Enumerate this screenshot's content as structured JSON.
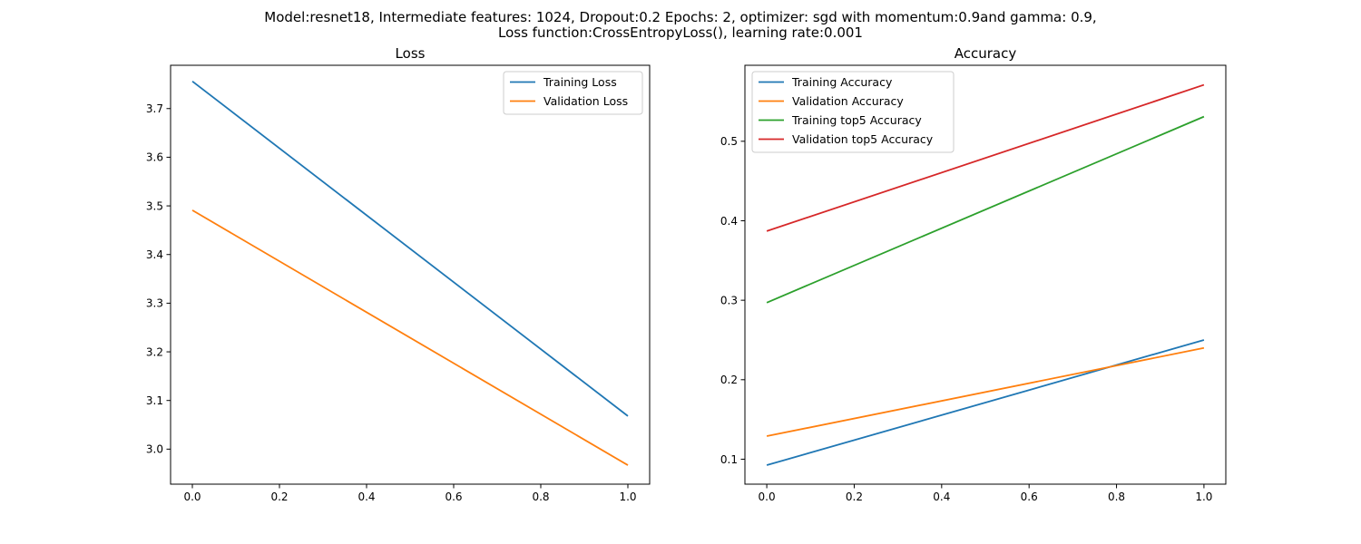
{
  "figure": {
    "suptitle_line1": "Model:resnet18, Intermediate features: 1024, Dropout:0.2 Epochs: 2, optimizer: sgd with momentum:0.9and gamma: 0.9,",
    "suptitle_line2": "Loss function:CrossEntropyLoss(), learning rate:0.001"
  },
  "chart_data": [
    {
      "type": "line",
      "title": "Loss",
      "xlabel": "",
      "ylabel": "",
      "x": [
        0.0,
        1.0
      ],
      "xlim": [
        -0.05,
        1.05
      ],
      "ylim": [
        2.928,
        3.789
      ],
      "xticks": [
        0.0,
        0.2,
        0.4,
        0.6,
        0.8,
        1.0
      ],
      "yticks": [
        3.0,
        3.1,
        3.2,
        3.3,
        3.4,
        3.5,
        3.6,
        3.7
      ],
      "grid": false,
      "legend_position": "upper right",
      "series": [
        {
          "name": "Training Loss",
          "color": "#1f77b4",
          "values": [
            3.756,
            3.068
          ]
        },
        {
          "name": "Validation Loss",
          "color": "#ff7f0e",
          "values": [
            3.491,
            2.967
          ]
        }
      ]
    },
    {
      "type": "line",
      "title": "Accuracy",
      "xlabel": "",
      "ylabel": "",
      "x": [
        0.0,
        1.0
      ],
      "xlim": [
        -0.05,
        1.05
      ],
      "ylim": [
        0.0686,
        0.5956
      ],
      "xticks": [
        0.0,
        0.2,
        0.4,
        0.6,
        0.8,
        1.0
      ],
      "yticks": [
        0.1,
        0.2,
        0.3,
        0.4,
        0.5
      ],
      "grid": false,
      "legend_position": "upper left",
      "series": [
        {
          "name": "Training Accuracy",
          "color": "#1f77b4",
          "values": [
            0.0925,
            0.25
          ]
        },
        {
          "name": "Validation Accuracy",
          "color": "#ff7f0e",
          "values": [
            0.129,
            0.24
          ]
        },
        {
          "name": "Training top5 Accuracy",
          "color": "#2ca02c",
          "values": [
            0.297,
            0.531
          ]
        },
        {
          "name": "Validation top5 Accuracy",
          "color": "#d62728",
          "values": [
            0.387,
            0.571
          ]
        }
      ]
    }
  ]
}
